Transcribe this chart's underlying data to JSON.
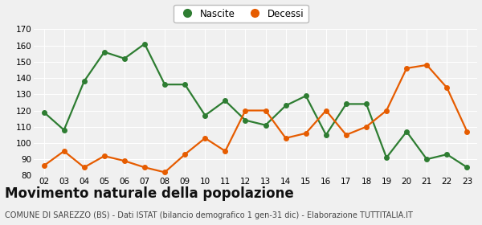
{
  "years": [
    "02",
    "03",
    "04",
    "05",
    "06",
    "07",
    "08",
    "09",
    "10",
    "11",
    "12",
    "13",
    "14",
    "15",
    "16",
    "17",
    "18",
    "19",
    "20",
    "21",
    "22",
    "23"
  ],
  "nascite": [
    119,
    108,
    138,
    156,
    152,
    161,
    136,
    136,
    117,
    126,
    114,
    111,
    123,
    129,
    105,
    124,
    124,
    91,
    107,
    90,
    93,
    85
  ],
  "decessi": [
    86,
    95,
    85,
    92,
    89,
    85,
    82,
    93,
    103,
    95,
    120,
    120,
    103,
    106,
    120,
    105,
    110,
    120,
    146,
    148,
    134,
    107
  ],
  "nascite_color": "#2e7d32",
  "decessi_color": "#e65c00",
  "background_color": "#f0f0f0",
  "grid_color": "#ffffff",
  "ylim": [
    80,
    170
  ],
  "yticks": [
    80,
    90,
    100,
    110,
    120,
    130,
    140,
    150,
    160,
    170
  ],
  "title": "Movimento naturale della popolazione",
  "subtitle": "COMUNE DI SAREZZO (BS) - Dati ISTAT (bilancio demografico 1 gen-31 dic) - Elaborazione TUTTITALIA.IT",
  "legend_nascite": "Nascite",
  "legend_decessi": "Decessi",
  "title_fontsize": 12,
  "subtitle_fontsize": 7,
  "tick_fontsize": 7.5,
  "legend_fontsize": 8.5,
  "marker_size": 4,
  "line_width": 1.6
}
